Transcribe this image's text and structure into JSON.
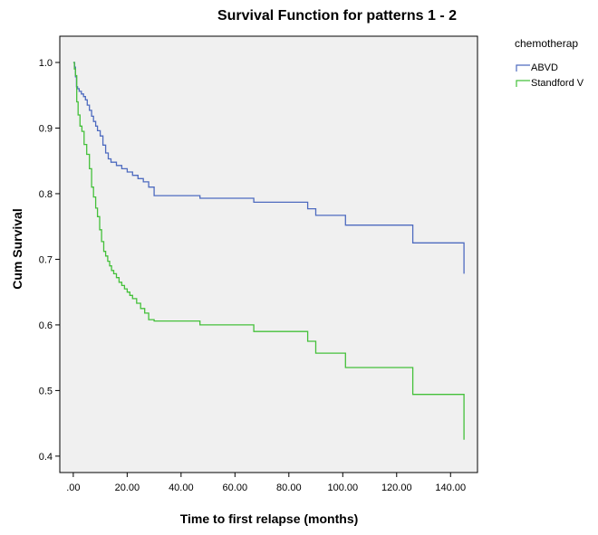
{
  "chart_data": {
    "type": "line",
    "step": true,
    "title": "Survival Function for patterns 1 - 2",
    "xlabel": "Time to first relapse (months)",
    "ylabel": "Cum Survival",
    "xlim": [
      -5,
      150
    ],
    "ylim": [
      0.375,
      1.04
    ],
    "xticks": [
      0,
      20,
      40,
      60,
      80,
      100,
      120,
      140
    ],
    "xtick_labels": [
      ".00",
      "20.00",
      "40.00",
      "60.00",
      "80.00",
      "100.00",
      "120.00",
      "140.00"
    ],
    "yticks": [
      0.4,
      0.5,
      0.6,
      0.7,
      0.8,
      0.9,
      1.0
    ],
    "ytick_labels": [
      "0.4",
      "0.5",
      "0.6",
      "0.7",
      "0.8",
      "0.9",
      "1.0"
    ],
    "background": "#f0f0f0",
    "legend": {
      "title": "chemotherap",
      "placement": "right"
    },
    "series": [
      {
        "name": "ABVD",
        "color": "#4e6bbf",
        "x": [
          0,
          0.5,
          0.8,
          1.2,
          1.6,
          2.2,
          3.0,
          3.8,
          4.5,
          5.2,
          6.0,
          6.8,
          7.5,
          8.3,
          9.0,
          10.0,
          11.0,
          12.0,
          13.0,
          14.0,
          16.0,
          18.0,
          20.0,
          22.0,
          24.0,
          26.0,
          28.0,
          30.0,
          47.0,
          67.0,
          87.0,
          90.0,
          101.0,
          126.0,
          145.0
        ],
        "y": [
          1.0,
          0.993,
          0.978,
          0.963,
          0.96,
          0.956,
          0.952,
          0.948,
          0.943,
          0.935,
          0.927,
          0.918,
          0.91,
          0.903,
          0.896,
          0.888,
          0.874,
          0.862,
          0.853,
          0.848,
          0.843,
          0.838,
          0.833,
          0.828,
          0.823,
          0.818,
          0.81,
          0.797,
          0.793,
          0.787,
          0.777,
          0.767,
          0.752,
          0.725,
          0.678
        ]
      },
      {
        "name": "Standford V",
        "color": "#44c03a",
        "x": [
          0,
          0.4,
          0.8,
          1.3,
          1.8,
          2.5,
          3.2,
          4.0,
          5.0,
          6.0,
          6.8,
          7.5,
          8.3,
          9.0,
          9.8,
          10.5,
          11.3,
          12.0,
          12.8,
          13.5,
          14.2,
          15.0,
          16.0,
          17.0,
          18.0,
          19.0,
          20.0,
          21.0,
          22.0,
          23.5,
          25.0,
          26.5,
          28.0,
          30.0,
          47.0,
          67.0,
          87.0,
          90.0,
          101.0,
          126.0,
          145.0
        ],
        "y": [
          1.0,
          0.99,
          0.98,
          0.94,
          0.92,
          0.903,
          0.895,
          0.875,
          0.86,
          0.838,
          0.81,
          0.795,
          0.778,
          0.765,
          0.745,
          0.727,
          0.712,
          0.705,
          0.697,
          0.69,
          0.683,
          0.678,
          0.672,
          0.665,
          0.66,
          0.655,
          0.65,
          0.645,
          0.64,
          0.633,
          0.625,
          0.618,
          0.608,
          0.606,
          0.6,
          0.59,
          0.575,
          0.557,
          0.535,
          0.494,
          0.425
        ]
      }
    ]
  }
}
